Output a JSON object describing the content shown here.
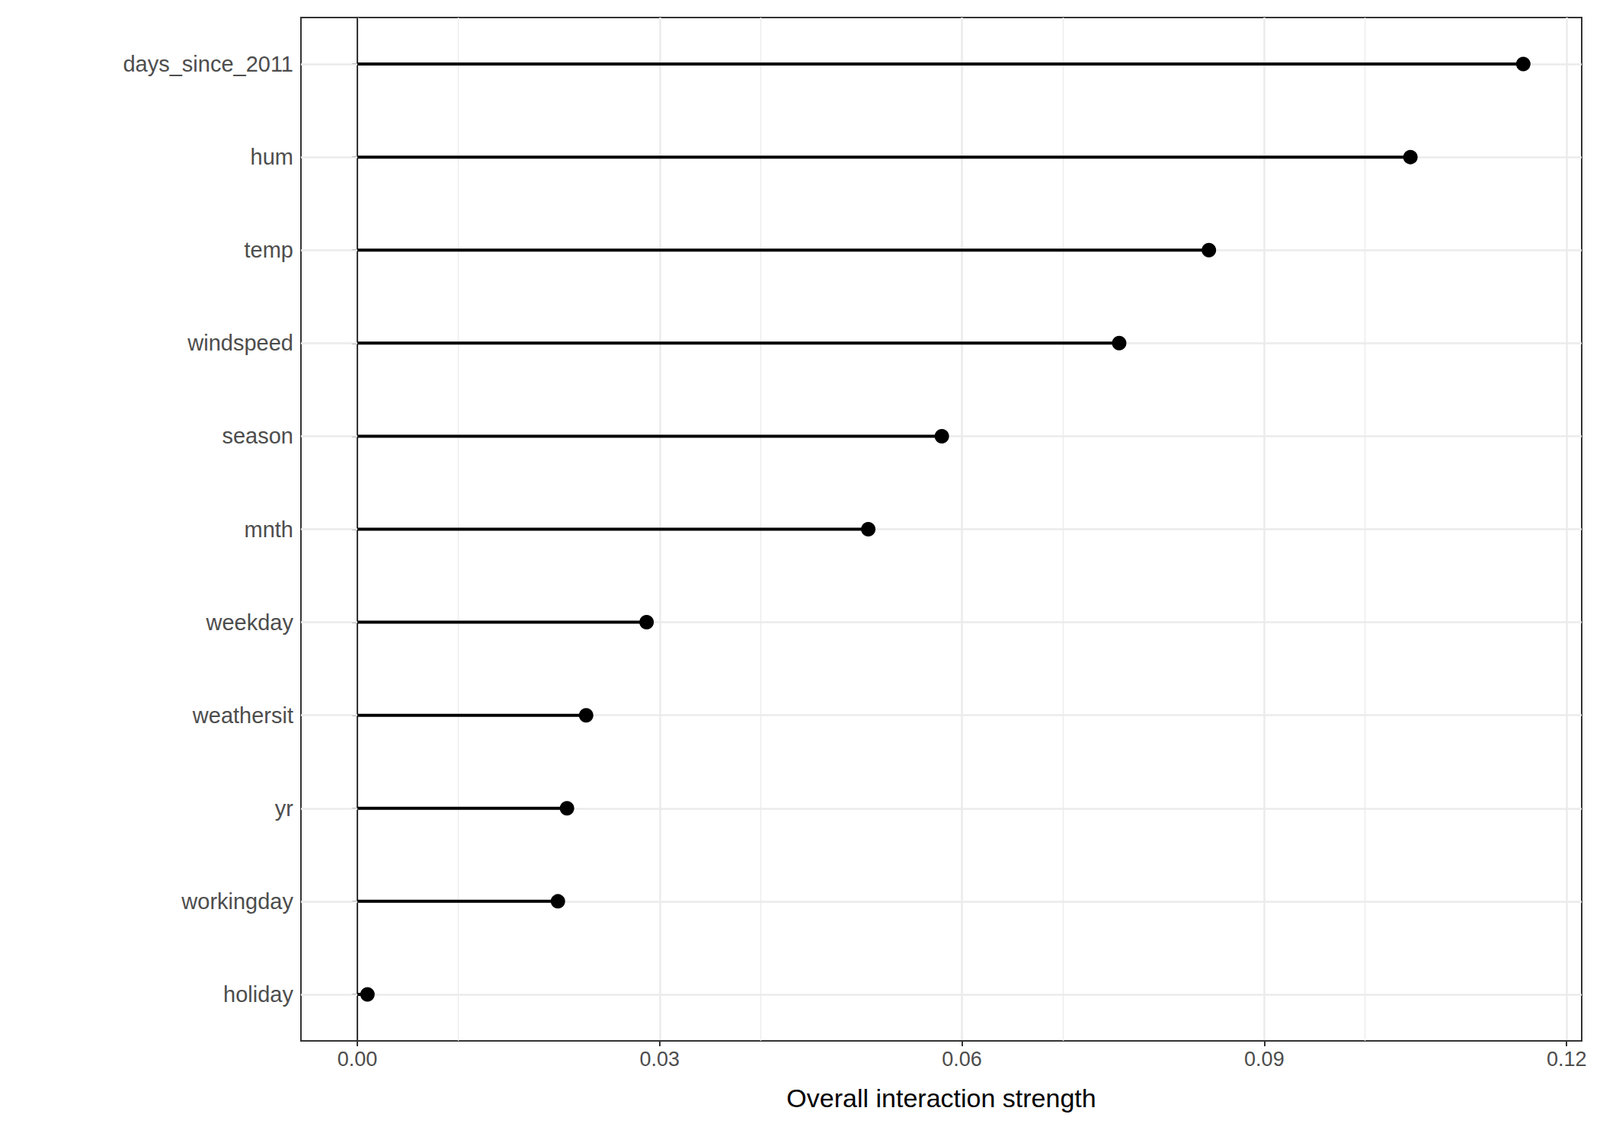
{
  "chart_data": {
    "type": "lollipop",
    "orientation": "horizontal",
    "marker": "circle",
    "categories": [
      "days_since_2011",
      "hum",
      "temp",
      "windspeed",
      "season",
      "mnth",
      "weekday",
      "weathersit",
      "yr",
      "workingday",
      "holiday"
    ],
    "values": [
      0.1157,
      0.1045,
      0.0845,
      0.0756,
      0.058,
      0.0507,
      0.0287,
      0.0227,
      0.0208,
      0.0199,
      0.001
    ],
    "color": "#000000",
    "xlabel": "Overall interaction strength",
    "xlim": [
      -0.0056,
      0.1215
    ],
    "xticks": [
      {
        "value": 0,
        "label": "0.00"
      },
      {
        "value": 0.03,
        "label": "0.03"
      },
      {
        "value": 0.06,
        "label": "0.06"
      },
      {
        "value": 0.09,
        "label": "0.09"
      },
      {
        "value": 0.12,
        "label": "0.12"
      }
    ],
    "grid": true
  }
}
